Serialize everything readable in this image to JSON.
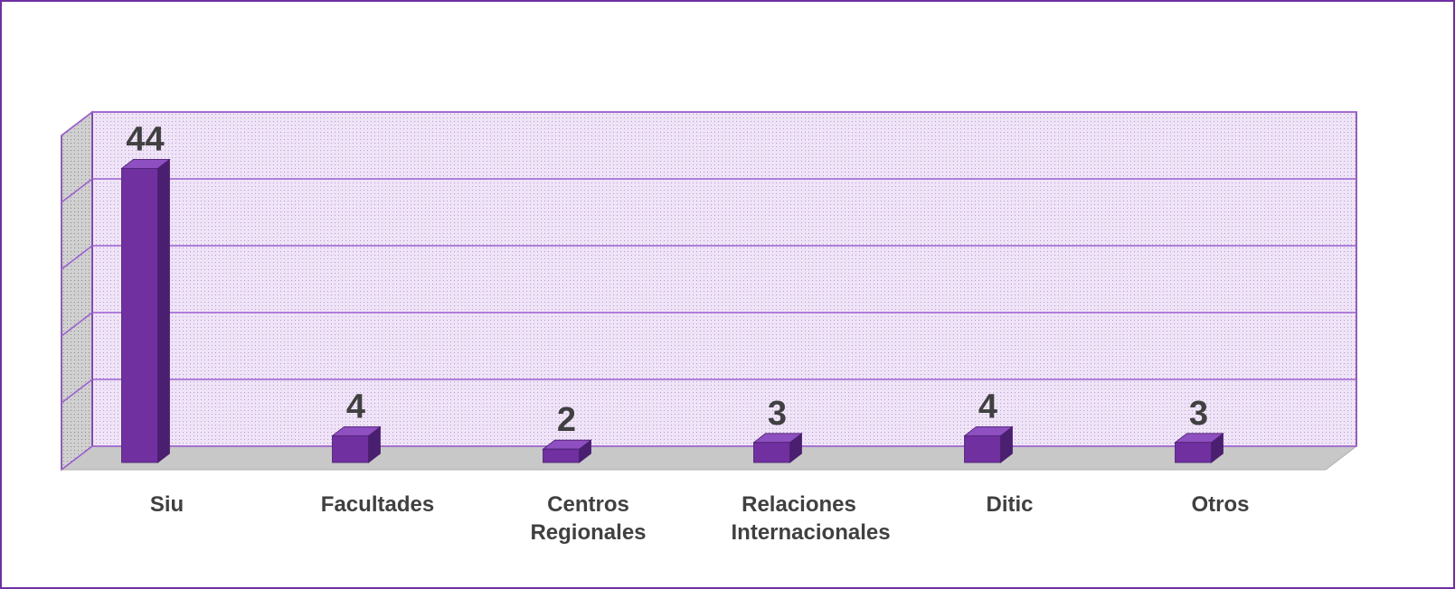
{
  "chart_data": {
    "type": "bar3d",
    "categories": [
      "Siu",
      "Facultades",
      "Centros Regionales",
      "Relaciones Internacionales",
      "Ditic",
      "Otros"
    ],
    "values": [
      44,
      4,
      2,
      3,
      4,
      3
    ],
    "color": "#7030a0",
    "ylim": [
      0,
      50
    ],
    "yticks": [
      0,
      10,
      20,
      30,
      40,
      50
    ],
    "grid": true
  }
}
